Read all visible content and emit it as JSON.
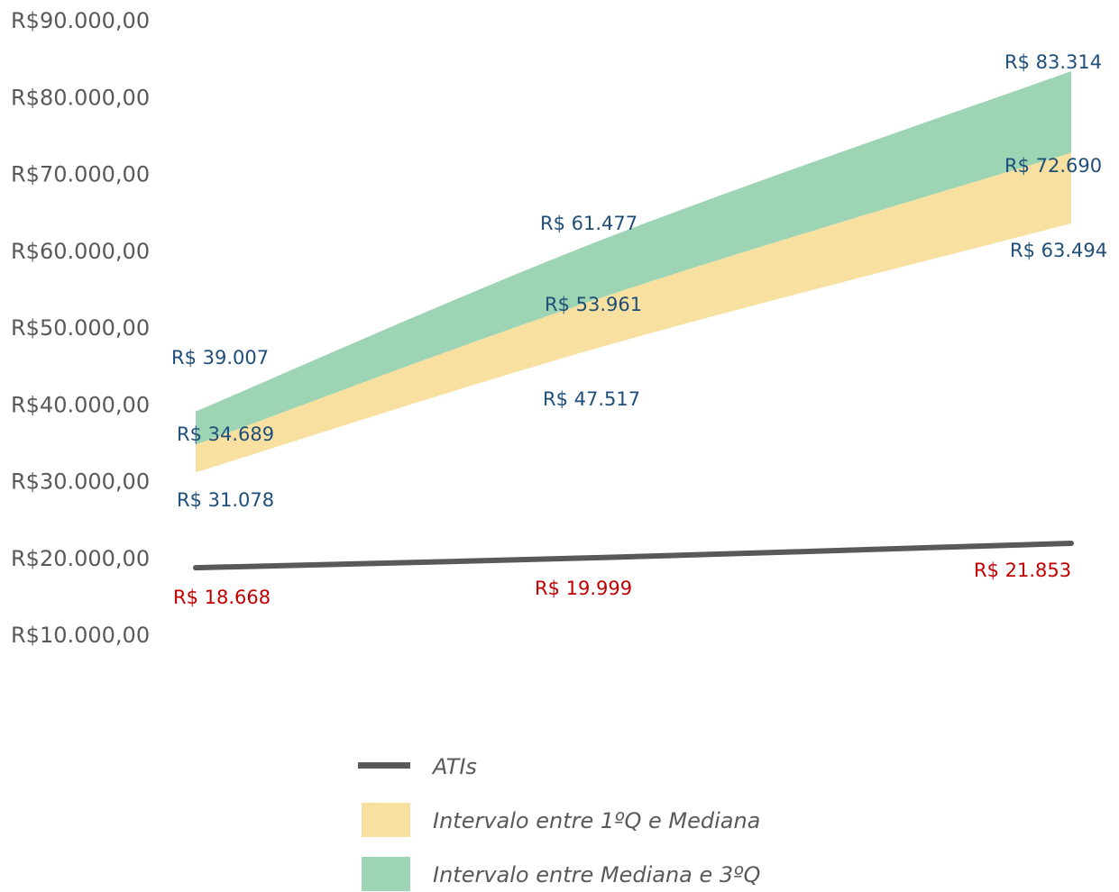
{
  "chart_data": {
    "type": "area",
    "x": [
      "1",
      "2",
      "3"
    ],
    "ylim": [
      10000,
      90000
    ],
    "yticks": [
      "R$10.000,00",
      "R$20.000,00",
      "R$30.000,00",
      "R$40.000,00",
      "R$50.000,00",
      "R$60.000,00",
      "R$70.000,00",
      "R$80.000,00",
      "R$90.000,00"
    ],
    "grid": false,
    "legend_position": "bottom",
    "series": [
      {
        "name": "ATIs",
        "kind": "line",
        "color": "#595959",
        "values": [
          18668,
          19999,
          21853
        ],
        "labels": [
          "R$ 18.668",
          "R$ 19.999",
          "R$ 21.853"
        ],
        "label_color": "#c00000"
      },
      {
        "name": "Intervalo entre 1ºQ e Mediana",
        "kind": "band",
        "color": "#f7e0a0",
        "lower": [
          31078,
          47517,
          63494
        ],
        "upper": [
          34689,
          53961,
          72690
        ],
        "lower_labels": [
          "R$ 31.078",
          "R$ 47.517",
          "R$ 63.494"
        ],
        "upper_labels": [
          "R$ 34.689",
          "R$ 53.961",
          "R$ 72.690"
        ],
        "label_color": "#1f4e79"
      },
      {
        "name": "Intervalo entre Mediana e 3ºQ",
        "kind": "band",
        "color": "#9dd4b4",
        "lower": [
          34689,
          53961,
          72690
        ],
        "upper": [
          39007,
          61477,
          83314
        ],
        "upper_labels": [
          "R$ 39.007",
          "R$ 61.477",
          "R$ 83.314"
        ],
        "label_color": "#1f4e79"
      }
    ]
  }
}
